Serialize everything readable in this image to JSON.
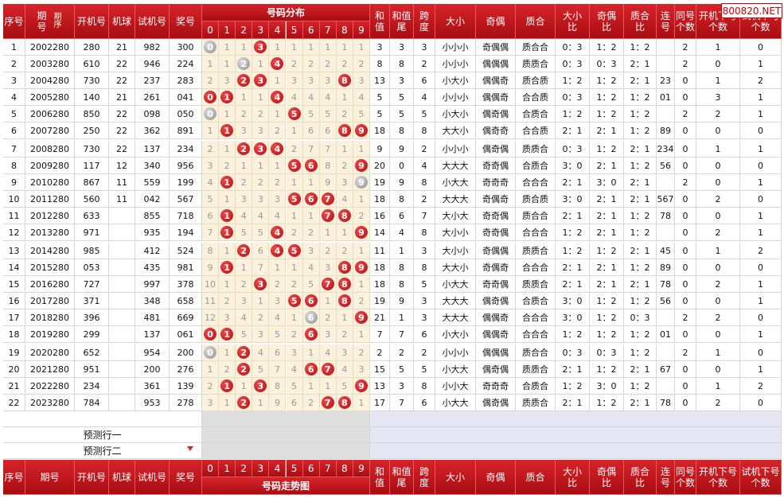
{
  "header": {
    "columns": [
      "序号",
      "期号",
      "开机号",
      "机球",
      "试机号",
      "奖号",
      "号码分布",
      "和值",
      "和值尾",
      "跨度",
      "大小",
      "奇偶",
      "质合",
      "大小比",
      "奇偶比",
      "质合比",
      "连号",
      "同号个数",
      "开机下号个数",
      "试机下号个数"
    ],
    "sort": "期序",
    "digits": [
      "0",
      "1",
      "2",
      "3",
      "4",
      "5",
      "6",
      "7",
      "8",
      "9"
    ]
  },
  "watermark": "800820.NET",
  "table": {
    "rows": [
      {
        "cells": [
          "1",
          "2002280",
          "280",
          "21",
          "982",
          "300"
        ],
        "dist": [
          {
            "hit": "0",
            "repeat": true
          },
          1,
          1,
          {
            "hit": "3"
          },
          1,
          1,
          1,
          1,
          1,
          1
        ],
        "stats": [
          "3",
          "3",
          "3",
          "小小小",
          "奇偶偶",
          "质合合",
          "0：3",
          "1：2",
          "1：2",
          "",
          "2",
          "1",
          "0"
        ]
      },
      {
        "cells": [
          "2",
          "2003280",
          "610",
          "22",
          "946",
          "224"
        ],
        "dist": [
          1,
          1,
          {
            "hit": "2",
            "repeat": true
          },
          1,
          {
            "hit": "4"
          },
          2,
          2,
          2,
          2,
          2
        ],
        "stats": [
          "8",
          "8",
          "2",
          "小小小",
          "偶偶偶",
          "质质合",
          "0：3",
          "0：3",
          "2：1",
          "",
          "2",
          "0",
          "1"
        ]
      },
      {
        "cells": [
          "3",
          "2004280",
          "730",
          "22",
          "237",
          "283"
        ],
        "dist": [
          2,
          3,
          {
            "hit": "2"
          },
          {
            "hit": "3"
          },
          1,
          3,
          3,
          3,
          {
            "hit": "8"
          },
          3
        ],
        "stats": [
          "13",
          "3",
          "6",
          "小大小",
          "偶偶奇",
          "质合质",
          "1：2",
          "1：2",
          "2：1",
          "23",
          "0",
          "1",
          "2"
        ]
      },
      {
        "cells": [
          "4",
          "2005280",
          "140",
          "21",
          "261",
          "041"
        ],
        "dist": [
          {
            "hit": "0"
          },
          {
            "hit": "1"
          },
          1,
          1,
          {
            "hit": "4"
          },
          4,
          4,
          4,
          1,
          4
        ],
        "stats": [
          "5",
          "5",
          "4",
          "小小小",
          "偶偶奇",
          "合合质",
          "0：3",
          "1：2",
          "1：2",
          "01",
          "0",
          "3",
          "1"
        ]
      },
      {
        "cells": [
          "5",
          "2006280",
          "850",
          "22",
          "098",
          "050"
        ],
        "dist": [
          {
            "hit": "0",
            "repeat": true
          },
          1,
          2,
          2,
          1,
          {
            "hit": "5"
          },
          5,
          5,
          2,
          5
        ],
        "stats": [
          "5",
          "5",
          "5",
          "小大小",
          "偶奇偶",
          "合质合",
          "1：2",
          "1：2",
          "1：2",
          "",
          "2",
          "2",
          "1"
        ]
      },
      {
        "cells": [
          "6",
          "2007280",
          "250",
          "22",
          "362",
          "891"
        ],
        "dist": [
          1,
          {
            "hit": "1"
          },
          3,
          3,
          2,
          1,
          6,
          6,
          {
            "hit": "8"
          },
          {
            "hit": "9"
          }
        ],
        "stats": [
          "18",
          "8",
          "8",
          "大大小",
          "偶奇奇",
          "合合质",
          "2：1",
          "2：1",
          "1：2",
          "89",
          "0",
          "0",
          "0"
        ]
      },
      {
        "cells": [
          "7",
          "2008280",
          "730",
          "22",
          "137",
          "234"
        ],
        "dist": [
          2,
          1,
          {
            "hit": "2"
          },
          {
            "hit": "3"
          },
          {
            "hit": "4"
          },
          2,
          7,
          7,
          1,
          1
        ],
        "stats": [
          "9",
          "9",
          "2",
          "小小小",
          "偶奇偶",
          "质质合",
          "0：3",
          "1：2",
          "2：1",
          "234",
          "0",
          "1",
          "1"
        ]
      },
      {
        "cells": [
          "8",
          "2009280",
          "117",
          "12",
          "340",
          "956"
        ],
        "dist": [
          3,
          2,
          1,
          1,
          1,
          {
            "hit": "5"
          },
          {
            "hit": "6"
          },
          8,
          2,
          {
            "hit": "9"
          }
        ],
        "stats": [
          "20",
          "0",
          "4",
          "大大大",
          "奇奇偶",
          "合质合",
          "3：0",
          "2：1",
          "1：2",
          "56",
          "0",
          "0",
          "0"
        ]
      },
      {
        "cells": [
          "9",
          "2010280",
          "867",
          "11",
          "559",
          "199"
        ],
        "dist": [
          4,
          {
            "hit": "1"
          },
          2,
          2,
          2,
          1,
          1,
          9,
          3,
          {
            "hit": "9",
            "repeat": true
          }
        ],
        "stats": [
          "19",
          "9",
          "8",
          "小大大",
          "奇奇奇",
          "合合合",
          "2：1",
          "3：0",
          "2：1",
          "",
          "2",
          "0",
          "1"
        ]
      },
      {
        "cells": [
          "10",
          "2011280",
          "560",
          "11",
          "042",
          "567"
        ],
        "dist": [
          5,
          1,
          3,
          3,
          3,
          {
            "hit": "5"
          },
          {
            "hit": "6"
          },
          {
            "hit": "7"
          },
          4,
          1
        ],
        "stats": [
          "18",
          "8",
          "2",
          "大大大",
          "奇偶奇",
          "质合质",
          "3：0",
          "2：1",
          "2：1",
          "567",
          "0",
          "2",
          "0"
        ]
      },
      {
        "cells": [
          "11",
          "2012280",
          "633",
          "",
          "855",
          "718"
        ],
        "dist": [
          6,
          {
            "hit": "1"
          },
          4,
          4,
          4,
          1,
          1,
          {
            "hit": "7"
          },
          {
            "hit": "8"
          },
          2
        ],
        "stats": [
          "16",
          "6",
          "7",
          "大小大",
          "奇奇偶",
          "质合合",
          "2：1",
          "2：1",
          "1：2",
          "78",
          "0",
          "0",
          "1"
        ]
      },
      {
        "cells": [
          "12",
          "2013280",
          "971",
          "",
          "935",
          "194"
        ],
        "dist": [
          7,
          {
            "hit": "1"
          },
          5,
          5,
          {
            "hit": "4"
          },
          2,
          2,
          1,
          1,
          {
            "hit": "9"
          }
        ],
        "stats": [
          "14",
          "4",
          "8",
          "大小小",
          "奇奇偶",
          "合合合",
          "1：2",
          "2：1",
          "1：2",
          "",
          "0",
          "2",
          "1"
        ]
      },
      {
        "cells": [
          "13",
          "2014280",
          "985",
          "",
          "412",
          "524"
        ],
        "dist": [
          8,
          1,
          {
            "hit": "2"
          },
          6,
          {
            "hit": "4"
          },
          {
            "hit": "5"
          },
          3,
          2,
          2,
          1
        ],
        "stats": [
          "11",
          "1",
          "3",
          "大小小",
          "奇偶偶",
          "质质合",
          "1：2",
          "1：2",
          "2：1",
          "45",
          "0",
          "1",
          "2"
        ]
      },
      {
        "cells": [
          "14",
          "2015280",
          "053",
          "",
          "435",
          "981"
        ],
        "dist": [
          9,
          {
            "hit": "1"
          },
          1,
          7,
          1,
          1,
          4,
          3,
          {
            "hit": "8"
          },
          {
            "hit": "9"
          }
        ],
        "stats": [
          "18",
          "8",
          "8",
          "大大小",
          "奇偶奇",
          "合合合",
          "2：1",
          "2：1",
          "1：2",
          "89",
          "0",
          "0",
          "0"
        ]
      },
      {
        "cells": [
          "15",
          "2016280",
          "727",
          "",
          "997",
          "378"
        ],
        "dist": [
          10,
          1,
          2,
          {
            "hit": "3"
          },
          2,
          2,
          5,
          {
            "hit": "7"
          },
          {
            "hit": "8"
          },
          1
        ],
        "stats": [
          "18",
          "8",
          "5",
          "小大大",
          "奇奇偶",
          "质质合",
          "2：1",
          "2：1",
          "2：1",
          "78",
          "0",
          "2",
          "1"
        ]
      },
      {
        "cells": [
          "16",
          "2017280",
          "371",
          "",
          "348",
          "658"
        ],
        "dist": [
          11,
          2,
          3,
          1,
          3,
          {
            "hit": "5"
          },
          {
            "hit": "6"
          },
          1,
          {
            "hit": "8"
          },
          2
        ],
        "stats": [
          "19",
          "9",
          "3",
          "大大大",
          "偶奇偶",
          "合质合",
          "3：0",
          "1：2",
          "1：2",
          "56",
          "0",
          "0",
          "1"
        ]
      },
      {
        "cells": [
          "17",
          "2018280",
          "396",
          "",
          "481",
          "669"
        ],
        "dist": [
          12,
          3,
          4,
          2,
          4,
          1,
          {
            "hit": "6",
            "repeat": true
          },
          2,
          1,
          {
            "hit": "9"
          }
        ],
        "stats": [
          "21",
          "1",
          "3",
          "大大大",
          "偶偶奇",
          "合合合",
          "3：0",
          "1：2",
          "0：3",
          "",
          "2",
          "2",
          "0"
        ]
      },
      {
        "cells": [
          "18",
          "2019280",
          "299",
          "",
          "137",
          "061"
        ],
        "dist": [
          {
            "hit": "0"
          },
          {
            "hit": "1"
          },
          5,
          3,
          5,
          2,
          {
            "hit": "6"
          },
          3,
          2,
          1
        ],
        "stats": [
          "7",
          "7",
          "6",
          "小大小",
          "偶偶奇",
          "合合合",
          "1：2",
          "1：2",
          "1：2",
          "01",
          "0",
          "0",
          "1"
        ]
      },
      {
        "cells": [
          "19",
          "2020280",
          "652",
          "",
          "954",
          "200"
        ],
        "dist": [
          {
            "hit": "0",
            "repeat": true
          },
          1,
          {
            "hit": "2"
          },
          4,
          6,
          3,
          1,
          4,
          3,
          2
        ],
        "stats": [
          "2",
          "2",
          "2",
          "小小小",
          "偶偶偶",
          "质合合",
          "0：3",
          "0：3",
          "1：2",
          "",
          "2",
          "1",
          "0"
        ]
      },
      {
        "cells": [
          "20",
          "2021280",
          "951",
          "",
          "200",
          "276"
        ],
        "dist": [
          1,
          2,
          {
            "hit": "2"
          },
          5,
          7,
          4,
          {
            "hit": "6"
          },
          {
            "hit": "7"
          },
          4,
          3
        ],
        "stats": [
          "15",
          "5",
          "5",
          "小大大",
          "偶奇偶",
          "质质合",
          "2：1",
          "1：2",
          "2：1",
          "67",
          "0",
          "0",
          "1"
        ]
      },
      {
        "cells": [
          "21",
          "2022280",
          "234",
          "",
          "361",
          "139"
        ],
        "dist": [
          2,
          {
            "hit": "1"
          },
          1,
          {
            "hit": "3"
          },
          8,
          5,
          1,
          1,
          5,
          {
            "hit": "9"
          }
        ],
        "stats": [
          "13",
          "3",
          "8",
          "小小大",
          "奇奇奇",
          "合质合",
          "1：2",
          "3：0",
          "1：2",
          "",
          "0",
          "1",
          "2"
        ]
      },
      {
        "cells": [
          "22",
          "2023280",
          "784",
          "",
          "953",
          "278"
        ],
        "dist": [
          3,
          1,
          {
            "hit": "2"
          },
          1,
          9,
          6,
          2,
          {
            "hit": "7"
          },
          {
            "hit": "8"
          },
          1
        ],
        "stats": [
          "17",
          "7",
          "6",
          "小大大",
          "偶奇偶",
          "质质合",
          "2：1",
          "1：2",
          "2：1",
          "78",
          "0",
          "2",
          "0"
        ]
      }
    ],
    "predict": [
      "预测行一",
      "预测行二"
    ]
  },
  "footer": {
    "columns": [
      "序号",
      "期号",
      "开机号",
      "机球",
      "试机号",
      "奖号",
      "号码走势图",
      "和值",
      "和值尾",
      "跨度",
      "大小",
      "奇偶",
      "质合",
      "大小比",
      "奇偶比",
      "质合比",
      "连号",
      "同号个数",
      "开机下号个数",
      "试机下号个数"
    ]
  }
}
